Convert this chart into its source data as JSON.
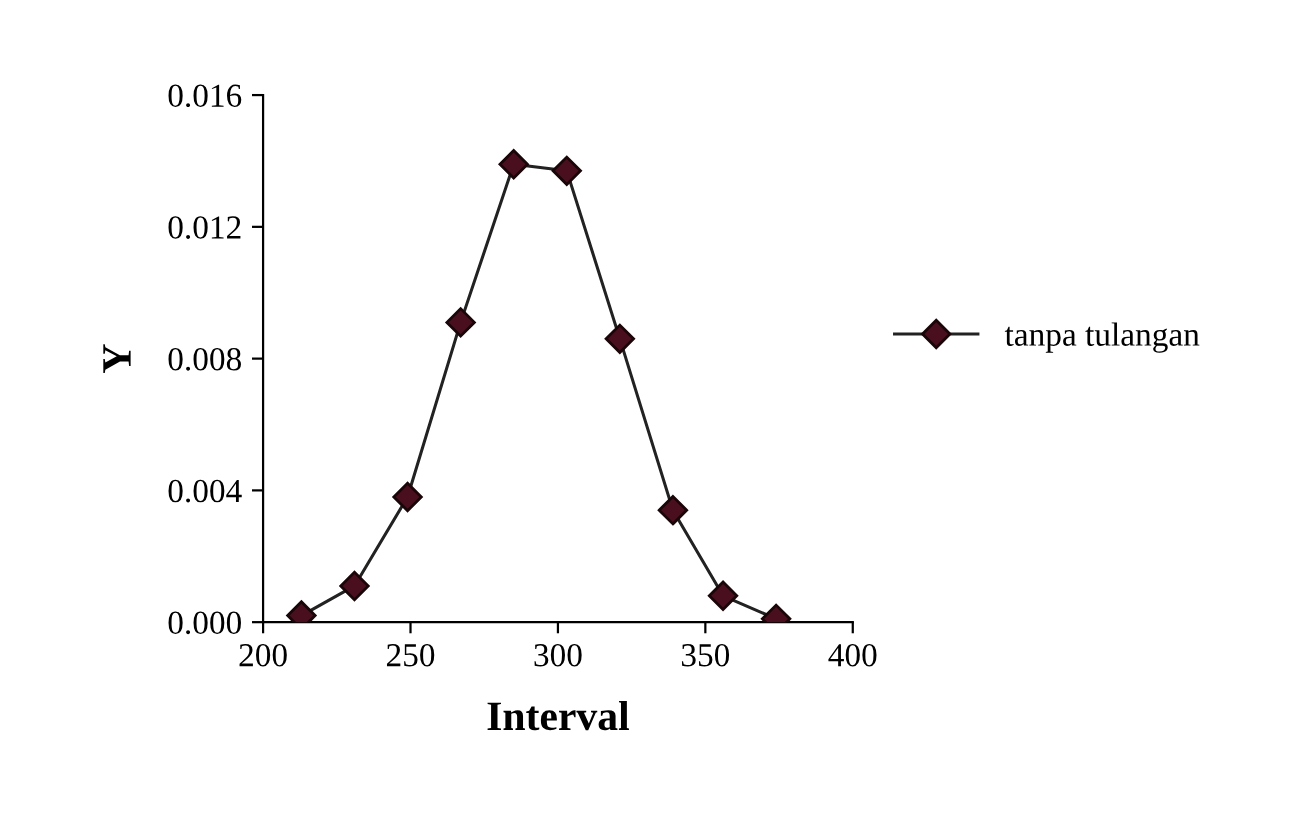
{
  "chart_data": {
    "type": "line",
    "xlabel": "Interval",
    "ylabel": "Y",
    "x": [
      213,
      231,
      249,
      267,
      285,
      303,
      321,
      339,
      356,
      374
    ],
    "series": [
      {
        "name": "tanpa tulangan",
        "color": "#4a0f1e",
        "values": [
          0.0002,
          0.0011,
          0.0038,
          0.0091,
          0.0139,
          0.0137,
          0.0086,
          0.0034,
          0.0008,
          0.0001
        ]
      }
    ],
    "xlim": [
      200,
      400
    ],
    "xticks": [
      200,
      250,
      300,
      350,
      400
    ],
    "ylim": [
      0,
      0.016
    ],
    "yticks": [
      {
        "value": 0,
        "label": "0.000"
      },
      {
        "value": 0.004,
        "label": "0.004"
      },
      {
        "value": 0.008,
        "label": "0.008"
      },
      {
        "value": 0.012,
        "label": "0.012"
      },
      {
        "value": 0.016,
        "label": "0.016"
      }
    ],
    "marker": "diamond",
    "line_style": "solid",
    "grid": false,
    "legend": "right"
  }
}
